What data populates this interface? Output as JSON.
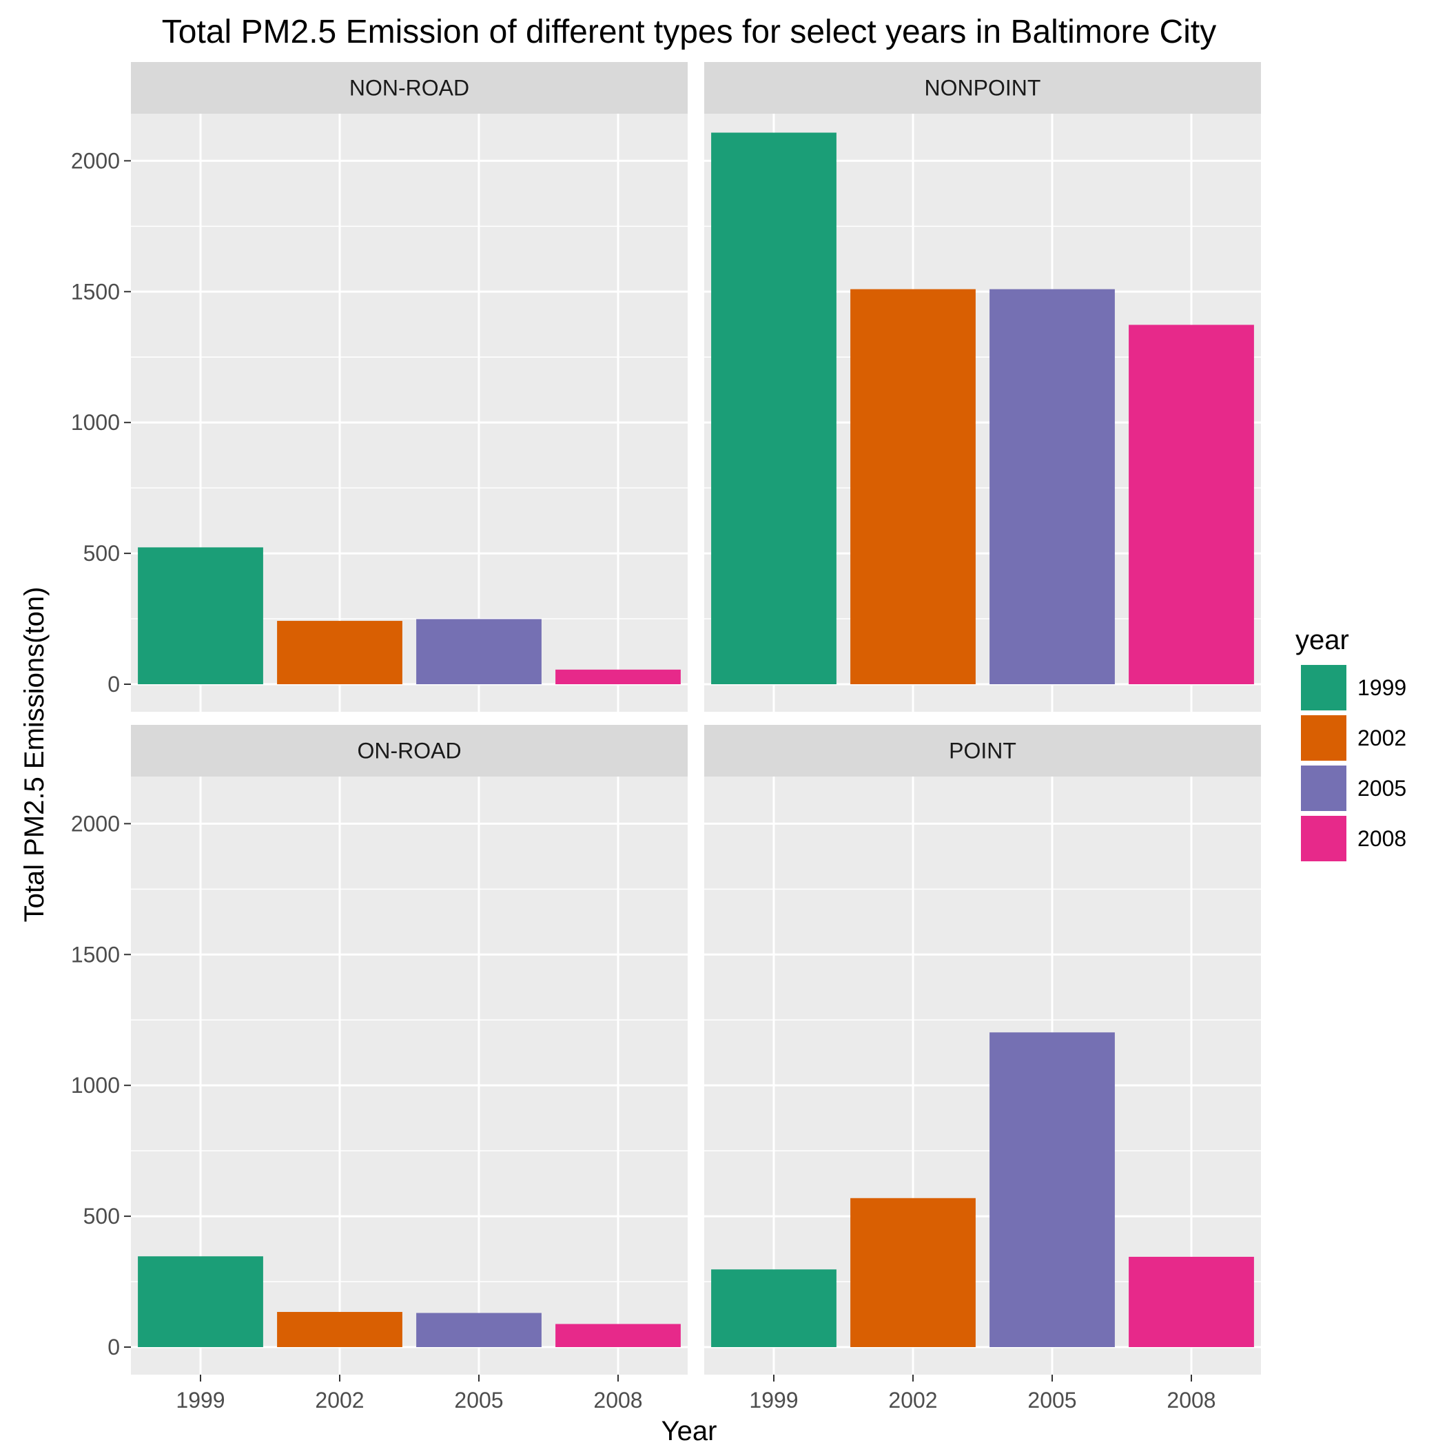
{
  "chart_data": {
    "type": "bar",
    "title": "Total PM2.5 Emission of different types for select years in Baltimore City",
    "xlabel": "Year",
    "ylabel": "Total PM2.5 Emissions(ton)",
    "ylim": [
      0,
      2180
    ],
    "yticks": [
      0,
      500,
      1000,
      1500,
      2000
    ],
    "minor_grid": true,
    "categories": [
      "1999",
      "2002",
      "2005",
      "2008"
    ],
    "legend": {
      "title": "year",
      "position": "right",
      "items": [
        {
          "label": "1999",
          "color": "#1b9e77"
        },
        {
          "label": "2002",
          "color": "#d95f02"
        },
        {
          "label": "2005",
          "color": "#7570b3"
        },
        {
          "label": "2008",
          "color": "#e7298a"
        }
      ]
    },
    "panels": [
      {
        "name": "NON-ROAD",
        "values": [
          522.94,
          242.08,
          248.93,
          55.82
        ]
      },
      {
        "name": "NONPOINT",
        "values": [
          2107.63,
          1509.5,
          1509.5,
          1373.21
        ]
      },
      {
        "name": "ON-ROAD",
        "values": [
          346.82,
          134.31,
          130.43,
          88.28
        ]
      },
      {
        "name": "POINT",
        "values": [
          296.8,
          569.26,
          1202.49,
          344.98
        ]
      }
    ]
  }
}
